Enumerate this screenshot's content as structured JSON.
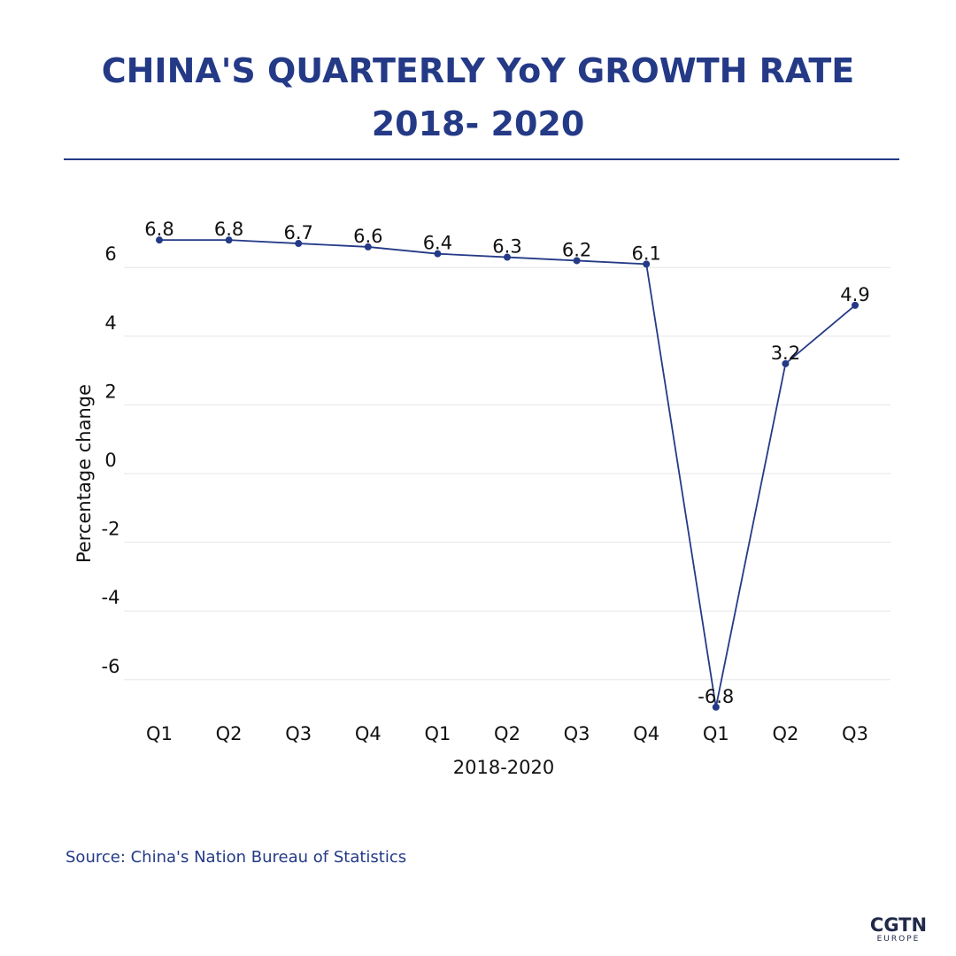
{
  "header": {
    "title_line1": "CHINA'S QUARTERLY YoY GROWTH RATE",
    "title_line2": "2018- 2020"
  },
  "chart_data": {
    "type": "line",
    "categories": [
      "Q1",
      "Q2",
      "Q3",
      "Q4",
      "Q1",
      "Q2",
      "Q3",
      "Q4",
      "Q1",
      "Q2",
      "Q3"
    ],
    "values": [
      6.8,
      6.8,
      6.7,
      6.6,
      6.4,
      6.3,
      6.2,
      6.1,
      -6.8,
      3.2,
      4.9
    ],
    "data_labels": [
      "6.8",
      "6.8",
      "6.7",
      "6.6",
      "6.4",
      "6.3",
      "6.2",
      "6.1",
      "-6.8",
      "3.2",
      "4.9"
    ],
    "xlabel": "2018-2020",
    "ylabel": "Percentage change",
    "yticks": [
      -6,
      -4,
      -2,
      0,
      2,
      4,
      6
    ],
    "ylim": [
      -7.3,
      7.7
    ],
    "grid": "horizontal",
    "legend": "none",
    "line_color": "#243a87",
    "grid_color": "#e6e6e6"
  },
  "footer": {
    "source": "Source: China's Nation Bureau of Statistics"
  },
  "logo": {
    "main": "CGTN",
    "sub": "EUROPE"
  },
  "colors": {
    "brand": "#243a87",
    "logo": "#222a4a",
    "text": "#111111"
  }
}
